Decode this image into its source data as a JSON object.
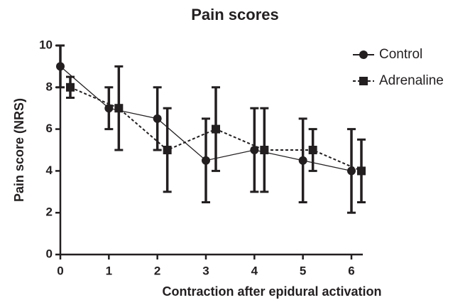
{
  "chart_data": {
    "type": "line",
    "title": "Pain scores",
    "x_label": "Contraction after epidural activation",
    "y_label": "Pain score (NRS)",
    "x": [
      0,
      1,
      2,
      3,
      4,
      5,
      6
    ],
    "series": [
      {
        "name": "Control",
        "color": "#231f20",
        "marker": "circle",
        "linestyle": "solid",
        "values": [
          9,
          7,
          6.5,
          4.5,
          5,
          4.5,
          4
        ],
        "errors": [
          1,
          1,
          1.5,
          2,
          2,
          2,
          2
        ]
      },
      {
        "name": "Adrenaline",
        "color": "#231f20",
        "marker": "square",
        "linestyle": "dashed",
        "values": [
          8,
          7,
          5,
          6,
          5,
          5,
          4
        ],
        "errors": [
          0.5,
          2,
          2,
          2,
          2,
          1,
          1.5
        ]
      }
    ],
    "xlim": [
      0,
      6
    ],
    "xticks": [
      0,
      1,
      2,
      3,
      4,
      5,
      6
    ],
    "ylim": [
      0,
      10
    ],
    "yticks": [
      0,
      2,
      4,
      6,
      8,
      10
    ],
    "grid": false,
    "legend": "upper right"
  }
}
